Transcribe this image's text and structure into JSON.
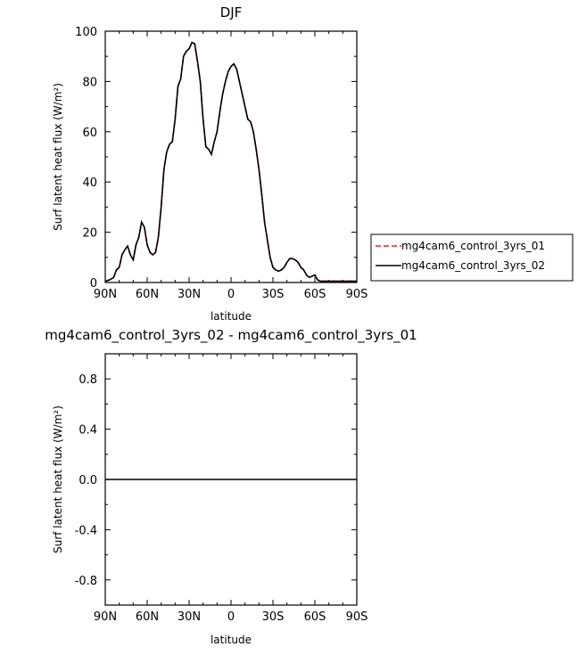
{
  "chart_data": [
    {
      "type": "line",
      "title": "DJF",
      "xlabel": "latitude",
      "ylabel": "Surf latent heat flux (W/m²)",
      "ylim": [
        0,
        100
      ],
      "xlim": [
        90,
        -90
      ],
      "xticks": [
        90,
        60,
        30,
        0,
        -30,
        -60,
        -90
      ],
      "xtick_labels": [
        "90N",
        "60N",
        "30N",
        "0",
        "30S",
        "60S",
        "90S"
      ],
      "yticks": [
        0,
        20,
        40,
        60,
        80,
        100
      ],
      "ytick_labels": [
        "0",
        "20",
        "40",
        "60",
        "80",
        "100"
      ],
      "legend_position": "right",
      "x": [
        90,
        87,
        84,
        82,
        80,
        78,
        76,
        74,
        72,
        70,
        68,
        66,
        64,
        62,
        60,
        58,
        56,
        54,
        52,
        50,
        48,
        46,
        44,
        42,
        40,
        38,
        36,
        34,
        32,
        30,
        28,
        26,
        24,
        22,
        20,
        18,
        16,
        14,
        12,
        10,
        8,
        6,
        4,
        2,
        0,
        -2,
        -4,
        -6,
        -8,
        -10,
        -12,
        -14,
        -16,
        -18,
        -20,
        -22,
        -24,
        -26,
        -28,
        -30,
        -32,
        -34,
        -36,
        -38,
        -40,
        -42,
        -44,
        -46,
        -48,
        -50,
        -52,
        -54,
        -56,
        -58,
        -60,
        -62,
        -64,
        -66,
        -68,
        -70,
        -72,
        -74,
        -76,
        -78,
        -80,
        -82,
        -84,
        -86,
        -88,
        -90
      ],
      "series": [
        {
          "name": "mg4cam6_control_3yrs_01",
          "color": "#e8202a",
          "dash": "dashed",
          "values": [
            0.5,
            1,
            2,
            5,
            6,
            11,
            13,
            14.5,
            11,
            9,
            15,
            18,
            24,
            22,
            15,
            12,
            11,
            12,
            18,
            30,
            45,
            52,
            55,
            56,
            65,
            78,
            81,
            90,
            92,
            93,
            95.5,
            95,
            88,
            80,
            65,
            54,
            53,
            51,
            56,
            60,
            68,
            75,
            80,
            84,
            86,
            87,
            85,
            80,
            75,
            70,
            65,
            64,
            60,
            53,
            45,
            35,
            24,
            17,
            10,
            6,
            5,
            4.5,
            5,
            6,
            8,
            9.5,
            9.5,
            9,
            8,
            6,
            5,
            3,
            2,
            2.5,
            3,
            1,
            0.5,
            0.5,
            0.5,
            0.5,
            0.5,
            0.5,
            0.5,
            0.5,
            0.5,
            0.5,
            0.5,
            0.5,
            0.5,
            0.5
          ]
        },
        {
          "name": "mg4cam6_control_3yrs_02",
          "color": "#000000",
          "dash": "solid",
          "values": [
            0.5,
            1,
            2,
            5,
            6,
            11,
            13,
            14.5,
            11,
            9,
            15,
            18,
            24,
            22,
            15,
            12,
            11,
            12,
            18,
            30,
            45,
            52,
            55,
            56,
            65,
            78,
            81,
            90,
            92,
            93,
            95.5,
            95,
            88,
            80,
            65,
            54,
            53,
            51,
            56,
            60,
            68,
            75,
            80,
            84,
            86,
            87,
            85,
            80,
            75,
            70,
            65,
            64,
            60,
            53,
            45,
            35,
            24,
            17,
            10,
            6,
            5,
            4.5,
            5,
            6,
            8,
            9.5,
            9.5,
            9,
            8,
            6,
            5,
            3,
            2,
            2.5,
            3,
            1,
            0.5,
            0.5,
            0.5,
            0.5,
            0.5,
            0.5,
            0.5,
            0.5,
            0.5,
            0.5,
            0.5,
            0.5,
            0.5,
            0.5
          ]
        }
      ]
    },
    {
      "type": "line",
      "title": "mg4cam6_control_3yrs_02 - mg4cam6_control_3yrs_01",
      "xlabel": "latitude",
      "ylabel": "Surf latent heat flux (W/m²)",
      "ylim": [
        -1,
        1
      ],
      "xlim": [
        90,
        -90
      ],
      "xticks": [
        90,
        60,
        30,
        0,
        -30,
        -60,
        -90
      ],
      "xtick_labels": [
        "90N",
        "60N",
        "30N",
        "0",
        "30S",
        "60S",
        "90S"
      ],
      "yticks": [
        -0.8,
        -0.4,
        0,
        0.4,
        0.8
      ],
      "ytick_labels": [
        "-0.8",
        "-0.4",
        "0.0",
        "0.4",
        "0.8"
      ],
      "x": [
        90,
        -90
      ],
      "series": [
        {
          "color": "#000000",
          "values": [
            0,
            0
          ]
        }
      ]
    }
  ]
}
